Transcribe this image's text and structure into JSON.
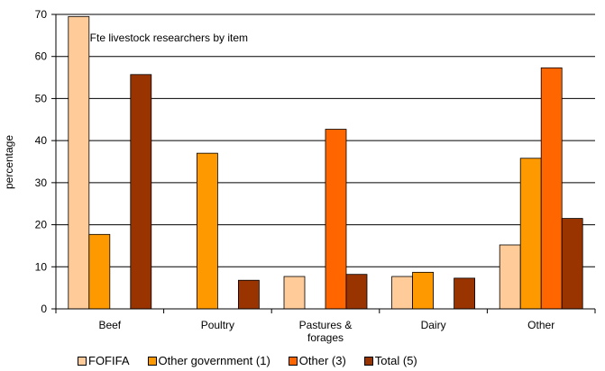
{
  "chart_data": {
    "type": "bar",
    "title": "c. Fte livestock researchers by item",
    "y_label": "percentage",
    "categories": [
      "Beef",
      "Poultry",
      "Pastures & forages",
      "Dairy",
      "Other"
    ],
    "series": [
      {
        "name": "FOFIFA",
        "color": "#ffcc99",
        "values": [
          69.5,
          0,
          7.7,
          7.7,
          15.2
        ]
      },
      {
        "name": "Other government (1)",
        "color": "#ff9900",
        "values": [
          17.7,
          37,
          0,
          8.7,
          35.8
        ]
      },
      {
        "name": "Other (3)",
        "color": "#ff6600",
        "values": [
          0,
          0,
          42.7,
          0,
          57.3
        ]
      },
      {
        "name": "Total (5)",
        "color": "#993300",
        "values": [
          55.7,
          6.8,
          8.2,
          7.3,
          21.5
        ]
      }
    ],
    "ylim": [
      0,
      70
    ],
    "yticks": [
      0,
      10,
      20,
      30,
      40,
      50,
      60,
      70
    ],
    "grid": true
  }
}
